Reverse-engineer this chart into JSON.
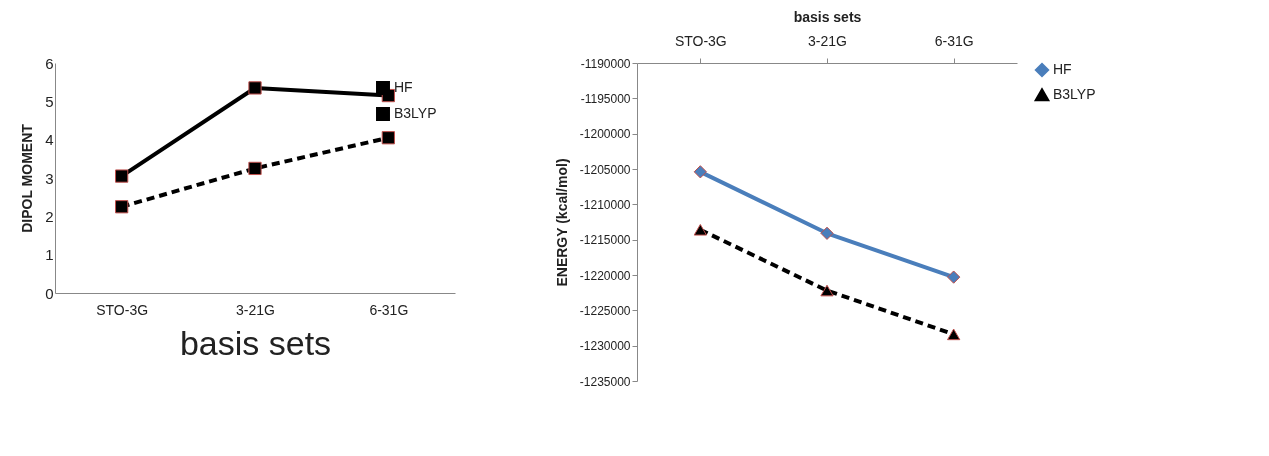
{
  "chart_data": [
    {
      "type": "line",
      "xlabel": "basis sets",
      "ylabel": "DIPOL MOMENT",
      "categories": [
        "STO-3G",
        "3-21G",
        "6-31G"
      ],
      "ylim": [
        0,
        6
      ],
      "yticks": [
        0,
        1,
        2,
        3,
        4,
        5,
        6
      ],
      "legend": "top right",
      "marker": "square",
      "series": [
        {
          "name": "HF",
          "color": "#000000",
          "values": [
            3.05,
            5.35,
            5.15
          ]
        },
        {
          "name": "B3LYP",
          "color": "#000000",
          "line_style": "dashed",
          "values": [
            2.25,
            3.25,
            4.05
          ]
        }
      ]
    },
    {
      "type": "line",
      "xlabel": "basis sets",
      "ylabel": "ENERGY  (kcal/mol)",
      "categories": [
        "STO-3G",
        "3-21G",
        "6-31G"
      ],
      "ylim": [
        -1235000,
        -1190000
      ],
      "yticks": [
        -1235000,
        -1230000,
        -1225000,
        -1220000,
        -1215000,
        -1210000,
        -1205000,
        -1200000,
        -1195000,
        -1190000
      ],
      "legend": "right",
      "series": [
        {
          "name": "HF",
          "color": "#4a7ebb",
          "marker": "diamond",
          "values": [
            -1205400,
            -1214100,
            -1220300
          ]
        },
        {
          "name": "B3LYP",
          "color": "#000000",
          "marker": "triangle",
          "line_style": "dashed",
          "values": [
            -1213600,
            -1222200,
            -1228400
          ]
        }
      ]
    }
  ]
}
